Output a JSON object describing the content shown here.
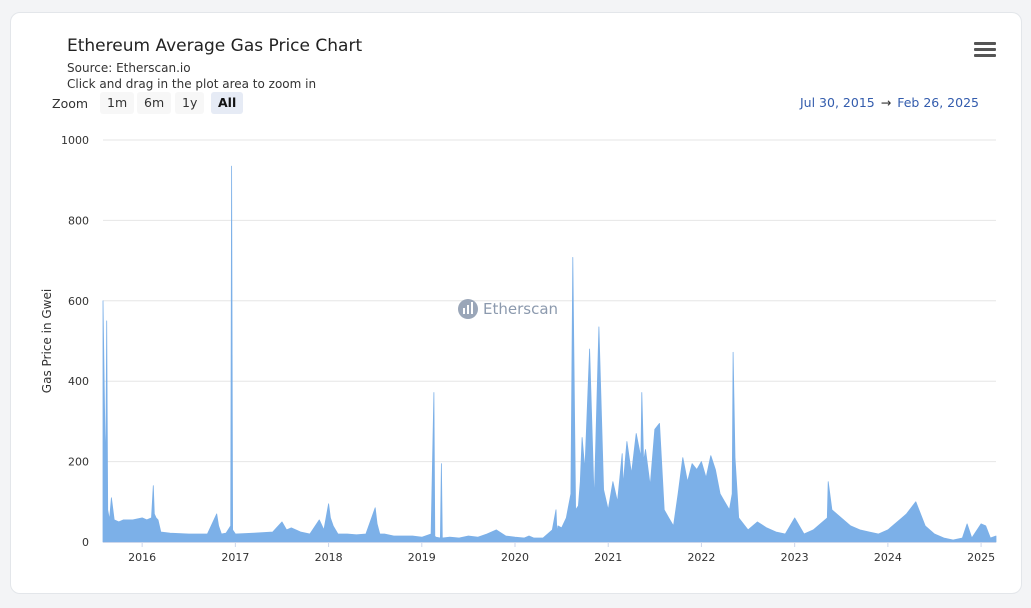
{
  "header": {
    "title": "Ethereum Average Gas Price Chart",
    "source": "Source: Etherscan.io",
    "hint": "Click and drag in the plot area to zoom in",
    "menu_icon": "hamburger-menu-icon"
  },
  "zoom": {
    "label": "Zoom",
    "buttons": [
      {
        "label": "1m",
        "active": false
      },
      {
        "label": "6m",
        "active": false
      },
      {
        "label": "1y",
        "active": false
      },
      {
        "label": "All",
        "active": true
      }
    ]
  },
  "range": {
    "from": "Jul 30, 2015",
    "arrow": "→",
    "to": "Feb 26, 2025"
  },
  "watermark": {
    "text": "Etherscan"
  },
  "chart_data": {
    "type": "area",
    "ylabel": "Gas Price in Gwei",
    "ylim": [
      0,
      1000
    ],
    "yticks": [
      0,
      200,
      400,
      600,
      800,
      1000
    ],
    "xlim": [
      2015.58,
      2025.16
    ],
    "xticks": [
      {
        "label": "2016",
        "value": 2016
      },
      {
        "label": "2017",
        "value": 2017
      },
      {
        "label": "2018",
        "value": 2018
      },
      {
        "label": "2019",
        "value": 2019
      },
      {
        "label": "2020",
        "value": 2020
      },
      {
        "label": "2021",
        "value": 2021
      },
      {
        "label": "2022",
        "value": 2022
      },
      {
        "label": "2023",
        "value": 2023
      },
      {
        "label": "2024",
        "value": 2024
      },
      {
        "label": "2025",
        "value": 2025
      }
    ],
    "grid": true,
    "color": "#7cb0e8",
    "series": [
      {
        "x": [
          2015.58,
          2015.6,
          2015.61,
          2015.62,
          2015.63,
          2015.65,
          2015.67,
          2015.7,
          2015.75,
          2015.8,
          2015.9,
          2016.0,
          2016.05,
          2016.1,
          2016.12,
          2016.13,
          2016.15,
          2016.17,
          2016.2,
          2016.3,
          2016.5,
          2016.7,
          2016.8,
          2016.82,
          2016.85,
          2016.9,
          2016.95,
          2016.96,
          2016.97,
          2017.0,
          2017.2,
          2017.4,
          2017.5,
          2017.55,
          2017.6,
          2017.7,
          2017.8,
          2017.9,
          2017.95,
          2018.0,
          2018.02,
          2018.05,
          2018.1,
          2018.2,
          2018.3,
          2018.4,
          2018.5,
          2018.52,
          2018.55,
          2018.6,
          2018.7,
          2018.8,
          2018.9,
          2019.0,
          2019.1,
          2019.13,
          2019.14,
          2019.15,
          2019.2,
          2019.21,
          2019.22,
          2019.3,
          2019.4,
          2019.5,
          2019.6,
          2019.7,
          2019.8,
          2019.9,
          2020.0,
          2020.1,
          2020.15,
          2020.2,
          2020.3,
          2020.4,
          2020.44,
          2020.45,
          2020.46,
          2020.5,
          2020.55,
          2020.6,
          2020.62,
          2020.65,
          2020.68,
          2020.7,
          2020.72,
          2020.75,
          2020.8,
          2020.85,
          2020.9,
          2020.95,
          2021.0,
          2021.05,
          2021.1,
          2021.15,
          2021.16,
          2021.2,
          2021.25,
          2021.3,
          2021.35,
          2021.36,
          2021.38,
          2021.4,
          2021.45,
          2021.5,
          2021.55,
          2021.6,
          2021.65,
          2021.7,
          2021.75,
          2021.8,
          2021.85,
          2021.9,
          2021.95,
          2022.0,
          2022.05,
          2022.1,
          2022.15,
          2022.2,
          2022.25,
          2022.3,
          2022.33,
          2022.34,
          2022.36,
          2022.4,
          2022.5,
          2022.6,
          2022.7,
          2022.8,
          2022.9,
          2023.0,
          2023.1,
          2023.2,
          2023.3,
          2023.35,
          2023.36,
          2023.4,
          2023.5,
          2023.6,
          2023.7,
          2023.8,
          2023.9,
          2024.0,
          2024.1,
          2024.15,
          2024.2,
          2024.3,
          2024.4,
          2024.5,
          2024.6,
          2024.7,
          2024.8,
          2024.85,
          2024.9,
          2025.0,
          2025.05,
          2025.1,
          2025.16
        ],
        "y": [
          600,
          270,
          190,
          550,
          80,
          55,
          110,
          55,
          50,
          55,
          55,
          60,
          55,
          60,
          140,
          70,
          60,
          55,
          25,
          22,
          20,
          20,
          70,
          40,
          20,
          22,
          40,
          935,
          30,
          20,
          22,
          25,
          50,
          30,
          35,
          25,
          20,
          55,
          30,
          95,
          60,
          40,
          20,
          20,
          18,
          20,
          85,
          45,
          20,
          20,
          15,
          15,
          15,
          12,
          20,
          372,
          15,
          12,
          10,
          195,
          10,
          12,
          10,
          15,
          12,
          20,
          30,
          15,
          12,
          10,
          15,
          10,
          10,
          30,
          80,
          20,
          40,
          35,
          60,
          120,
          708,
          80,
          90,
          150,
          260,
          180,
          480,
          100,
          535,
          130,
          80,
          150,
          100,
          220,
          140,
          250,
          170,
          270,
          210,
          372,
          200,
          230,
          140,
          280,
          295,
          80,
          60,
          40,
          120,
          210,
          150,
          195,
          180,
          200,
          160,
          215,
          180,
          120,
          100,
          80,
          120,
          472,
          210,
          60,
          30,
          50,
          35,
          25,
          20,
          60,
          20,
          30,
          50,
          60,
          150,
          80,
          60,
          40,
          30,
          25,
          20,
          30,
          50,
          60,
          70,
          100,
          40,
          20,
          10,
          5,
          10,
          45,
          10,
          45,
          40,
          10,
          15
        ]
      }
    ]
  }
}
